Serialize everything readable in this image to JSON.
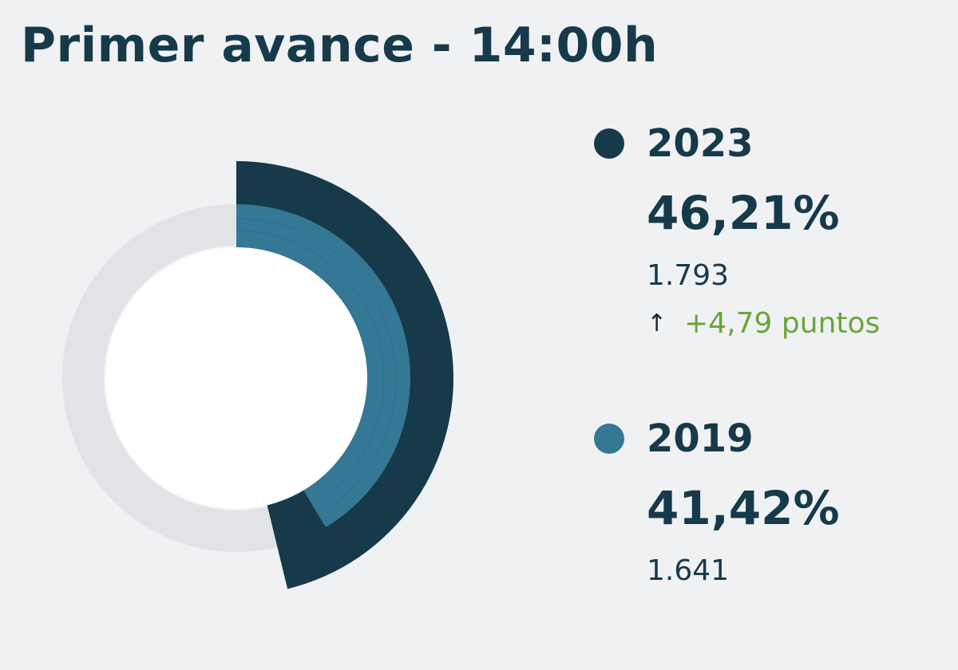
{
  "title": "Primer avance - 14:00h",
  "chart_data": {
    "type": "pie",
    "variant": "radial-donut",
    "series": [
      {
        "name": "2023",
        "value": 46.21,
        "percent_label": "46,21%",
        "count": "1.793",
        "change_label": "+4,79 puntos",
        "change_direction": "up",
        "color": "#163a4a"
      },
      {
        "name": "2019",
        "value": 41.42,
        "percent_label": "41,42%",
        "count": "1.641",
        "color": "#357895"
      }
    ],
    "max": 100,
    "track_color": "#e2e3e7",
    "center_color": "#ffffff",
    "change_color": "#6aa53a",
    "legend_position": "right"
  }
}
